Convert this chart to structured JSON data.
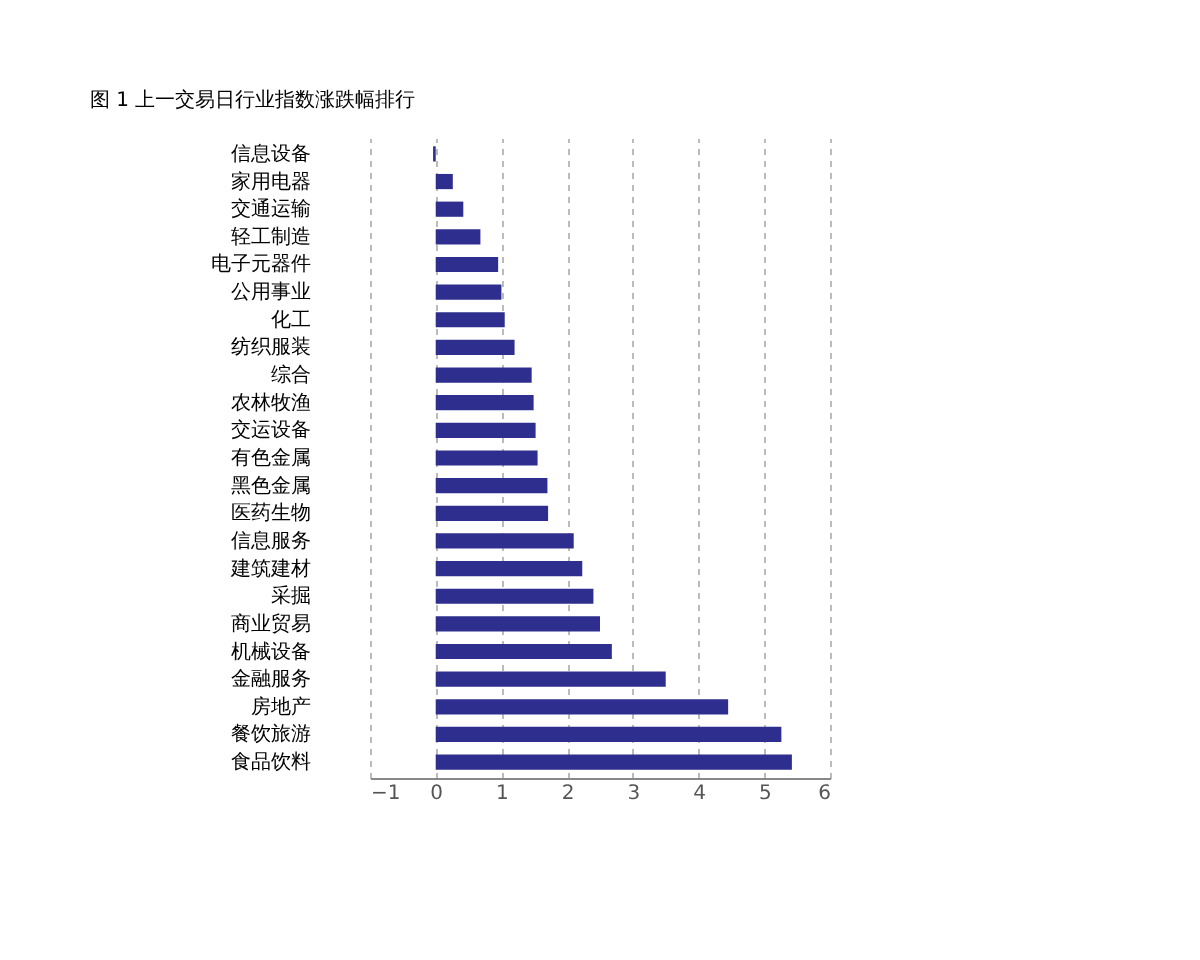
{
  "chart_data": {
    "type": "bar",
    "title": "图 1 上一交易日行业指数涨跌幅排行",
    "orientation": "horizontal",
    "categories": [
      "信息设备",
      "家用电器",
      "交通运输",
      "轻工制造",
      "电子元器件",
      "公用事业",
      "化工",
      "纺织服装",
      "综合",
      "农林牧渔",
      "交运设备",
      "有色金属",
      "黑色金属",
      "医药生物",
      "信息服务",
      "建筑建材",
      "采掘",
      "商业贸易",
      "机械设备",
      "金融服务",
      "房地产",
      "餐饮旅游",
      "食品饮料"
    ],
    "values": [
      -0.04,
      0.26,
      0.42,
      0.68,
      0.95,
      1.0,
      1.05,
      1.2,
      1.46,
      1.49,
      1.52,
      1.55,
      1.7,
      1.71,
      2.1,
      2.23,
      2.4,
      2.5,
      2.68,
      3.5,
      4.45,
      5.26,
      5.42
    ],
    "color": "#2e2e8f",
    "xlim": [
      -1,
      6
    ],
    "xticks": [
      -1,
      0,
      1,
      2,
      3,
      4,
      5,
      6
    ],
    "grid": "x"
  }
}
